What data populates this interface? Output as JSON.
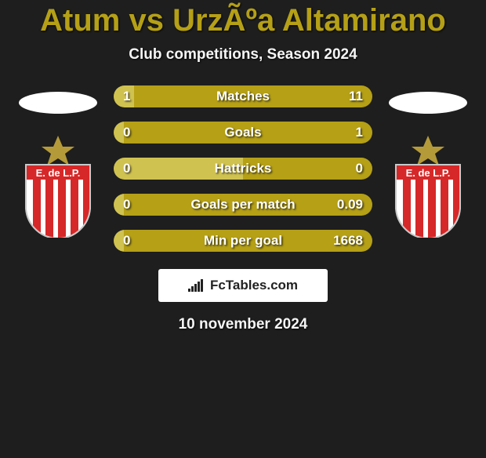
{
  "title": "Atum vs UrzÃºa Altamirano",
  "subtitle": "Club competitions, Season 2024",
  "date": "10 november 2024",
  "branding": "FcTables.com",
  "colors": {
    "accent": "#b5a016",
    "accent_light": "#d0c250",
    "bg": "#1e1e1e"
  },
  "bars": [
    {
      "label": "Matches",
      "left": "1",
      "right": "11",
      "left_pct": 8,
      "right_pct": 92
    },
    {
      "label": "Goals",
      "left": "0",
      "right": "1",
      "left_pct": 4,
      "right_pct": 96
    },
    {
      "label": "Hattricks",
      "left": "0",
      "right": "0",
      "left_pct": 50,
      "right_pct": 50
    },
    {
      "label": "Goals per match",
      "left": "0",
      "right": "0.09",
      "left_pct": 4,
      "right_pct": 96
    },
    {
      "label": "Min per goal",
      "left": "0",
      "right": "1668",
      "left_pct": 4,
      "right_pct": 96
    }
  ],
  "crest": {
    "star_color": "#b59a3a",
    "shield_border": "#c9c9c9",
    "shield_fill": "#ffffff",
    "band_color": "#d62828",
    "band_text": "E. de L.P.",
    "stripe_color": "#d62828"
  }
}
